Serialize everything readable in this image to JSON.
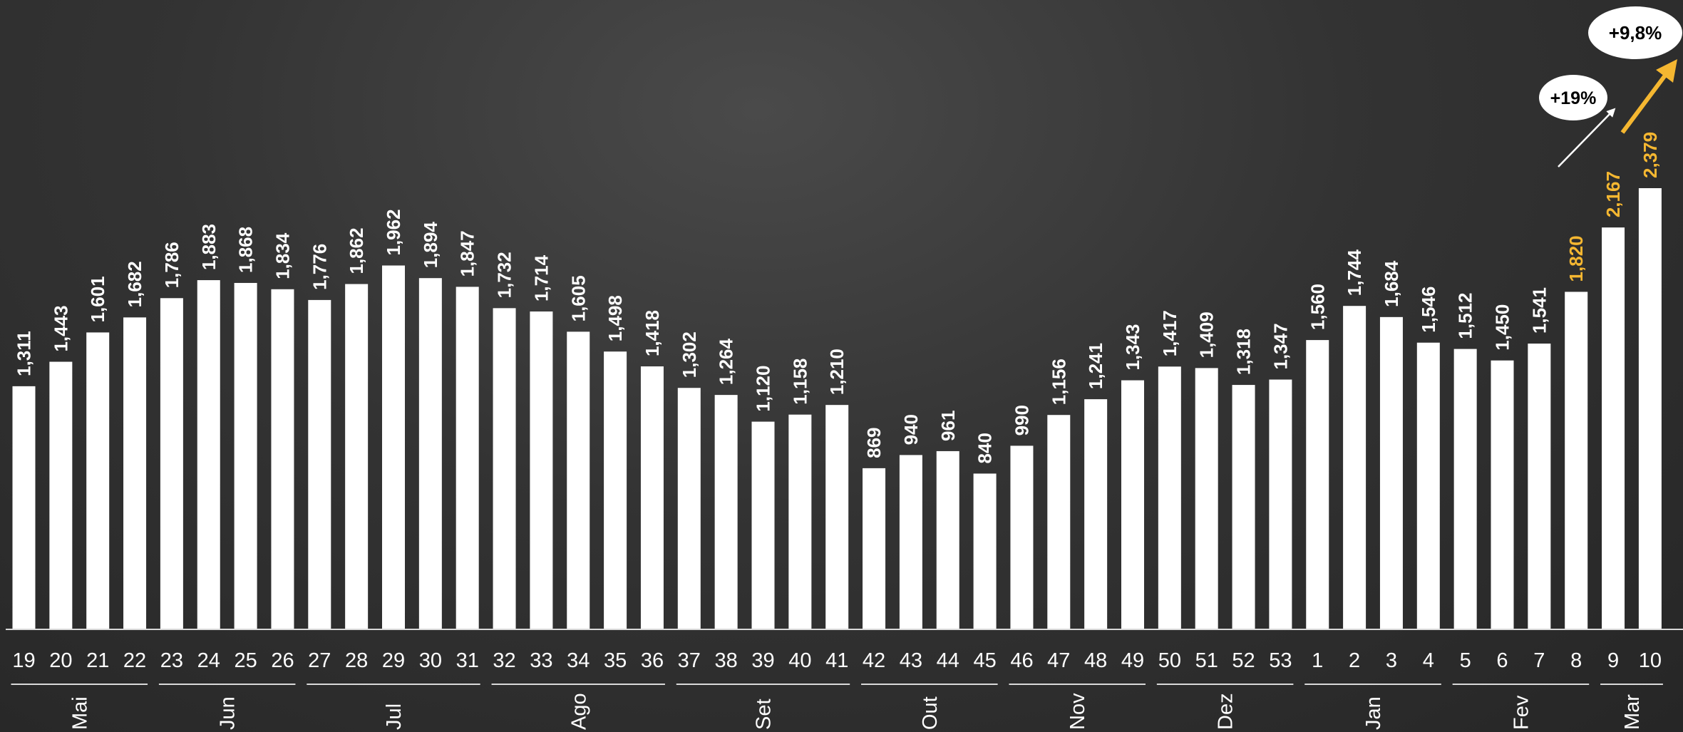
{
  "chart_data": {
    "type": "bar",
    "categories": [
      "19",
      "20",
      "21",
      "22",
      "23",
      "24",
      "25",
      "26",
      "27",
      "28",
      "29",
      "30",
      "31",
      "32",
      "33",
      "34",
      "35",
      "36",
      "37",
      "38",
      "39",
      "40",
      "41",
      "42",
      "43",
      "44",
      "45",
      "46",
      "47",
      "48",
      "49",
      "50",
      "51",
      "52",
      "53",
      "1",
      "2",
      "3",
      "4",
      "5",
      "6",
      "7",
      "8",
      "9",
      "10"
    ],
    "values": [
      1311,
      1443,
      1601,
      1682,
      1786,
      1883,
      1868,
      1834,
      1776,
      1862,
      1962,
      1894,
      1847,
      1732,
      1714,
      1605,
      1498,
      1418,
      1302,
      1264,
      1120,
      1158,
      1210,
      869,
      940,
      961,
      840,
      990,
      1156,
      1241,
      1343,
      1417,
      1409,
      1318,
      1347,
      1560,
      1744,
      1684,
      1546,
      1512,
      1450,
      1541,
      1820,
      2167,
      2379
    ],
    "value_labels": [
      "1,311",
      "1,443",
      "1,601",
      "1,682",
      "1,786",
      "1,883",
      "1,868",
      "1,834",
      "1,776",
      "1,862",
      "1,962",
      "1,894",
      "1,847",
      "1,732",
      "1,714",
      "1,605",
      "1,498",
      "1,418",
      "1,302",
      "1,264",
      "1,120",
      "1,158",
      "1,210",
      "869",
      "940",
      "961",
      "840",
      "990",
      "1,156",
      "1,241",
      "1,343",
      "1,417",
      "1,409",
      "1,318",
      "1,347",
      "1,560",
      "1,744",
      "1,684",
      "1,546",
      "1,512",
      "1,450",
      "1,541",
      "1,820",
      "2,167",
      "2,379"
    ],
    "highlight_label_indices": [
      42,
      43,
      44
    ],
    "months": [
      {
        "name": "Mai",
        "first": 0,
        "last": 3
      },
      {
        "name": "Jun",
        "first": 4,
        "last": 7
      },
      {
        "name": "Jul",
        "first": 8,
        "last": 12
      },
      {
        "name": "Ago",
        "first": 13,
        "last": 17
      },
      {
        "name": "Set",
        "first": 18,
        "last": 22
      },
      {
        "name": "Out",
        "first": 23,
        "last": 26
      },
      {
        "name": "Nov",
        "first": 27,
        "last": 30
      },
      {
        "name": "Dez",
        "first": 31,
        "last": 34
      },
      {
        "name": "Jan",
        "first": 35,
        "last": 38
      },
      {
        "name": "Fev",
        "first": 39,
        "last": 42
      },
      {
        "name": "Mar",
        "first": 43,
        "last": 44
      }
    ],
    "annotations": [
      {
        "text": "+19%",
        "from_index": 42,
        "to_index": 43,
        "color": "#ffffff"
      },
      {
        "text": "+9,8%",
        "from_index": 43,
        "to_index": 44,
        "color": "#f5b731"
      }
    ],
    "ylim": [
      0,
      2500
    ],
    "colors": {
      "bar": "#ffffff",
      "highlight": "#f5b731",
      "axis": "#d9d9d9",
      "text": "#ffffff",
      "callout_text": "#000000"
    },
    "grid": false,
    "title": "",
    "xlabel": "",
    "ylabel": ""
  }
}
